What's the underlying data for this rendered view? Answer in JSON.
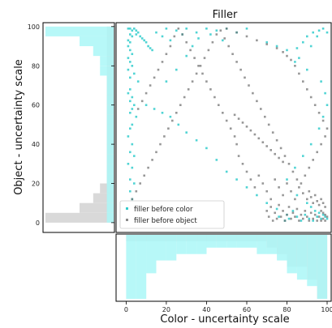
{
  "chart_data": {
    "type": "scatter",
    "title": "Filler",
    "xlabel": "Color - uncertainty scale",
    "ylabel": "Object - uncertainty scale",
    "xlim": [
      -5,
      102
    ],
    "ylim": [
      -5,
      102
    ],
    "xticks": [
      0,
      20,
      40,
      60,
      80,
      100
    ],
    "yticks": [
      0,
      20,
      40,
      60,
      80,
      100
    ],
    "grid": false,
    "legend_position": "lower-left",
    "colors": {
      "color_series": "#33cccc",
      "object_series": "#6b6b6b",
      "hist_color": "#aaf7f7",
      "hist_object": "#d9d9d9"
    },
    "series": [
      {
        "name": "filler before color",
        "color": "#33cccc",
        "points": [
          [
            1,
            99
          ],
          [
            2,
            99
          ],
          [
            3,
            98
          ],
          [
            4,
            99
          ],
          [
            5,
            98
          ],
          [
            6,
            97
          ],
          [
            2,
            96
          ],
          [
            3,
            95
          ],
          [
            5,
            96
          ],
          [
            7,
            95
          ],
          [
            8,
            94
          ],
          [
            9,
            93
          ],
          [
            10,
            92
          ],
          [
            11,
            90
          ],
          [
            12,
            89
          ],
          [
            13,
            88
          ],
          [
            1,
            93
          ],
          [
            2,
            92
          ],
          [
            1,
            90
          ],
          [
            2,
            88
          ],
          [
            3,
            86
          ],
          [
            1,
            84
          ],
          [
            2,
            82
          ],
          [
            3,
            80
          ],
          [
            1,
            78
          ],
          [
            4,
            76
          ],
          [
            2,
            74
          ],
          [
            6,
            72
          ],
          [
            20,
            72
          ],
          [
            25,
            78
          ],
          [
            30,
            85
          ],
          [
            33,
            90
          ],
          [
            15,
            97
          ],
          [
            20,
            99
          ],
          [
            25,
            98
          ],
          [
            30,
            99
          ],
          [
            35,
            97
          ],
          [
            40,
            99
          ],
          [
            45,
            98
          ],
          [
            50,
            99
          ],
          [
            55,
            97
          ],
          [
            60,
            99
          ],
          [
            18,
            95
          ],
          [
            22,
            93
          ],
          [
            28,
            96
          ],
          [
            36,
            94
          ],
          [
            42,
            96
          ],
          [
            48,
            93
          ],
          [
            3,
            64
          ],
          [
            2,
            62
          ],
          [
            4,
            60
          ],
          [
            3,
            58
          ],
          [
            2,
            56
          ],
          [
            1,
            66
          ],
          [
            2,
            68
          ],
          [
            5,
            54
          ],
          [
            3,
            50
          ],
          [
            2,
            48
          ],
          [
            1,
            44
          ],
          [
            3,
            40
          ],
          [
            2,
            36
          ],
          [
            4,
            34
          ],
          [
            1,
            30
          ],
          [
            3,
            28
          ],
          [
            2,
            22
          ],
          [
            4,
            20
          ],
          [
            2,
            16
          ],
          [
            3,
            12
          ],
          [
            1,
            8
          ],
          [
            2,
            4
          ],
          [
            10,
            60
          ],
          [
            14,
            58
          ],
          [
            18,
            56
          ],
          [
            22,
            54
          ],
          [
            26,
            50
          ],
          [
            30,
            46
          ],
          [
            35,
            42
          ],
          [
            40,
            38
          ],
          [
            45,
            32
          ],
          [
            50,
            26
          ],
          [
            55,
            22
          ],
          [
            60,
            18
          ],
          [
            65,
            14
          ],
          [
            70,
            10
          ],
          [
            75,
            7
          ],
          [
            80,
            4
          ],
          [
            70,
            92
          ],
          [
            75,
            90
          ],
          [
            80,
            88
          ],
          [
            85,
            89
          ],
          [
            88,
            92
          ],
          [
            90,
            95
          ],
          [
            93,
            97
          ],
          [
            96,
            98
          ],
          [
            98,
            99
          ],
          [
            100,
            97
          ],
          [
            95,
            95
          ],
          [
            92,
            90
          ],
          [
            86,
            84
          ],
          [
            84,
            82
          ],
          [
            90,
            78
          ],
          [
            97,
            72
          ],
          [
            99,
            66
          ],
          [
            100,
            60
          ],
          [
            98,
            54
          ],
          [
            96,
            48
          ],
          [
            92,
            40
          ],
          [
            88,
            34
          ],
          [
            84,
            28
          ],
          [
            80,
            22
          ],
          [
            85,
            14
          ],
          [
            90,
            10
          ],
          [
            92,
            8
          ],
          [
            94,
            6
          ],
          [
            96,
            5
          ],
          [
            98,
            4
          ],
          [
            99,
            3
          ],
          [
            100,
            2
          ],
          [
            97,
            2
          ],
          [
            95,
            3
          ],
          [
            93,
            1
          ],
          [
            91,
            2
          ],
          [
            89,
            4
          ],
          [
            87,
            1
          ],
          [
            85,
            3
          ],
          [
            83,
            6
          ],
          [
            81,
            2
          ],
          [
            79,
            1
          ],
          [
            76,
            3
          ]
        ]
      },
      {
        "name": "filler before object",
        "color": "#6b6b6b",
        "points": [
          [
            99,
            1
          ],
          [
            98,
            2
          ],
          [
            97,
            1
          ],
          [
            100,
            3
          ],
          [
            99,
            4
          ],
          [
            96,
            3
          ],
          [
            95,
            1
          ],
          [
            98,
            5
          ],
          [
            97,
            6
          ],
          [
            94,
            4
          ],
          [
            93,
            2
          ],
          [
            92,
            5
          ],
          [
            91,
            1
          ],
          [
            90,
            3
          ],
          [
            89,
            6
          ],
          [
            88,
            2
          ],
          [
            87,
            4
          ],
          [
            86,
            1
          ],
          [
            85,
            7
          ],
          [
            84,
            3
          ],
          [
            83,
            5
          ],
          [
            82,
            2
          ],
          [
            81,
            8
          ],
          [
            80,
            4
          ],
          [
            79,
            1
          ],
          [
            78,
            6
          ],
          [
            77,
            3
          ],
          [
            76,
            9
          ],
          [
            75,
            2
          ],
          [
            74,
            5
          ],
          [
            73,
            1
          ],
          [
            72,
            8
          ],
          [
            71,
            3
          ],
          [
            70,
            6
          ],
          [
            99,
            8
          ],
          [
            98,
            10
          ],
          [
            97,
            12
          ],
          [
            96,
            9
          ],
          [
            95,
            11
          ],
          [
            94,
            14
          ],
          [
            93,
            10
          ],
          [
            92,
            13
          ],
          [
            91,
            16
          ],
          [
            90,
            12
          ],
          [
            88,
            15
          ],
          [
            86,
            18
          ],
          [
            84,
            12
          ],
          [
            82,
            16
          ],
          [
            80,
            20
          ],
          [
            78,
            14
          ],
          [
            76,
            18
          ],
          [
            74,
            22
          ],
          [
            72,
            12
          ],
          [
            70,
            16
          ],
          [
            68,
            20
          ],
          [
            66,
            24
          ],
          [
            64,
            18
          ],
          [
            62,
            22
          ],
          [
            60,
            26
          ],
          [
            58,
            30
          ],
          [
            56,
            34
          ],
          [
            55,
            40
          ],
          [
            54,
            44
          ],
          [
            52,
            48
          ],
          [
            50,
            52
          ],
          [
            48,
            56
          ],
          [
            46,
            60
          ],
          [
            44,
            64
          ],
          [
            42,
            68
          ],
          [
            40,
            72
          ],
          [
            38,
            76
          ],
          [
            36,
            80
          ],
          [
            34,
            84
          ],
          [
            32,
            88
          ],
          [
            30,
            92
          ],
          [
            28,
            96
          ],
          [
            26,
            99
          ],
          [
            24,
            95
          ],
          [
            22,
            90
          ],
          [
            20,
            86
          ],
          [
            18,
            82
          ],
          [
            16,
            78
          ],
          [
            14,
            74
          ],
          [
            12,
            70
          ],
          [
            10,
            66
          ],
          [
            8,
            62
          ],
          [
            6,
            58
          ],
          [
            50,
            99
          ],
          [
            55,
            97
          ],
          [
            60,
            95
          ],
          [
            65,
            93
          ],
          [
            70,
            91
          ],
          [
            75,
            89
          ],
          [
            78,
            87
          ],
          [
            80,
            85
          ],
          [
            82,
            83
          ],
          [
            84,
            80
          ],
          [
            86,
            76
          ],
          [
            88,
            72
          ],
          [
            90,
            68
          ],
          [
            92,
            64
          ],
          [
            94,
            60
          ],
          [
            96,
            56
          ],
          [
            98,
            52
          ],
          [
            100,
            48
          ],
          [
            99,
            44
          ],
          [
            97,
            40
          ],
          [
            95,
            36
          ],
          [
            93,
            32
          ],
          [
            91,
            28
          ],
          [
            89,
            24
          ],
          [
            87,
            20
          ],
          [
            85,
            22
          ],
          [
            83,
            26
          ],
          [
            81,
            30
          ],
          [
            79,
            34
          ],
          [
            77,
            38
          ],
          [
            75,
            42
          ],
          [
            73,
            46
          ],
          [
            71,
            50
          ],
          [
            69,
            54
          ],
          [
            67,
            58
          ],
          [
            65,
            62
          ],
          [
            63,
            66
          ],
          [
            61,
            70
          ],
          [
            59,
            74
          ],
          [
            57,
            78
          ],
          [
            55,
            82
          ],
          [
            53,
            86
          ],
          [
            51,
            90
          ],
          [
            49,
            94
          ],
          [
            47,
            98
          ],
          [
            45,
            96
          ],
          [
            43,
            92
          ],
          [
            41,
            88
          ],
          [
            39,
            84
          ],
          [
            37,
            80
          ],
          [
            35,
            76
          ],
          [
            33,
            72
          ],
          [
            31,
            68
          ],
          [
            29,
            64
          ],
          [
            27,
            60
          ],
          [
            25,
            56
          ],
          [
            23,
            52
          ],
          [
            21,
            48
          ],
          [
            19,
            44
          ],
          [
            17,
            40
          ],
          [
            15,
            36
          ],
          [
            13,
            32
          ],
          [
            11,
            28
          ],
          [
            9,
            24
          ],
          [
            7,
            20
          ],
          [
            5,
            16
          ],
          [
            3,
            12
          ],
          [
            1,
            8
          ],
          [
            54,
            55
          ],
          [
            56,
            53
          ],
          [
            58,
            51
          ],
          [
            60,
            49
          ],
          [
            62,
            47
          ],
          [
            64,
            45
          ],
          [
            66,
            43
          ],
          [
            68,
            41
          ],
          [
            70,
            39
          ],
          [
            72,
            37
          ],
          [
            74,
            35
          ],
          [
            76,
            33
          ],
          [
            78,
            31
          ]
        ]
      }
    ],
    "hist_top": {
      "bins": [
        0,
        5,
        10,
        15,
        20,
        25,
        30,
        35,
        40,
        45,
        50,
        55,
        60,
        65,
        70,
        75,
        80,
        85,
        90,
        95,
        100
      ],
      "color_counts": [
        10,
        10,
        6,
        4,
        4,
        3,
        3,
        3,
        2,
        2,
        2,
        2,
        2,
        3,
        3,
        4,
        6,
        7,
        8,
        10
      ],
      "object_counts": [
        1,
        1,
        1,
        1,
        1,
        1,
        1,
        1,
        1,
        1,
        1,
        1,
        1,
        1,
        2,
        3,
        5,
        5,
        7,
        10
      ]
    },
    "hist_left": {
      "bins": [
        0,
        5,
        10,
        15,
        20,
        25,
        30,
        35,
        40,
        45,
        50,
        55,
        60,
        65,
        70,
        75,
        80,
        85,
        90,
        95,
        100
      ],
      "color_counts": [
        1,
        1,
        1,
        1,
        1,
        1,
        1,
        1,
        1,
        1,
        1,
        1,
        1,
        1,
        1,
        2,
        2,
        3,
        5,
        10
      ],
      "object_counts": [
        10,
        5,
        3,
        2,
        1,
        1,
        1,
        1,
        1,
        1,
        1,
        1,
        1,
        1,
        1,
        1,
        1,
        1,
        1,
        1
      ]
    }
  }
}
